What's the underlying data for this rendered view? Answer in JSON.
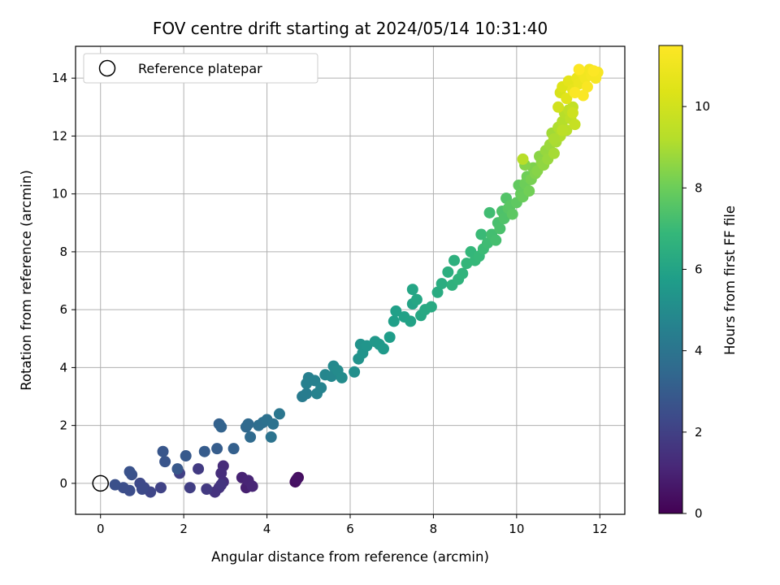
{
  "chart_data": {
    "type": "scatter",
    "title": "FOV centre drift starting at 2024/05/14 10:31:40",
    "xlabel": "Angular distance from reference (arcmin)",
    "ylabel": "Rotation from reference (arcmin)",
    "colorbar_label": "Hours from first FF file",
    "xlim": [
      -0.6,
      12.6
    ],
    "ylim": [
      -1.07,
      15.1
    ],
    "x_ticks": [
      0,
      2,
      4,
      6,
      8,
      10,
      12
    ],
    "y_ticks": [
      0,
      2,
      4,
      6,
      8,
      10,
      12,
      14
    ],
    "colorbar_range": [
      0,
      11.5
    ],
    "colorbar_ticks": [
      0,
      2,
      4,
      6,
      8,
      10
    ],
    "colormap": "viridis",
    "grid": true,
    "legend": {
      "label": "Reference platepar",
      "position": "top-left"
    },
    "reference_point": {
      "x": 0,
      "y": 0
    },
    "series": [
      {
        "points": [
          [
            4.7,
            0.1,
            0.2
          ],
          [
            4.75,
            0.2,
            0.3
          ],
          [
            4.68,
            0.05,
            0.4
          ],
          [
            4.72,
            0.15,
            0.5
          ],
          [
            3.6,
            -0.05,
            0.8
          ],
          [
            3.5,
            -0.15,
            0.9
          ],
          [
            3.4,
            0.2,
            1.0
          ],
          [
            3.55,
            0.1,
            1.05
          ],
          [
            3.65,
            -0.1,
            1.1
          ],
          [
            2.95,
            0.6,
            1.3
          ],
          [
            2.9,
            0.35,
            1.35
          ],
          [
            2.95,
            0.05,
            1.4
          ],
          [
            2.85,
            -0.15,
            1.5
          ],
          [
            2.75,
            -0.3,
            1.55
          ],
          [
            2.9,
            -0.05,
            1.6
          ],
          [
            2.55,
            -0.2,
            1.75
          ],
          [
            2.35,
            0.5,
            1.8
          ],
          [
            2.15,
            -0.15,
            1.9
          ],
          [
            1.9,
            0.35,
            2.0
          ],
          [
            1.45,
            -0.15,
            2.1
          ],
          [
            1.2,
            -0.3,
            2.2
          ],
          [
            1.05,
            -0.15,
            2.25
          ],
          [
            0.95,
            0.0,
            2.3
          ],
          [
            1.0,
            -0.2,
            2.35
          ],
          [
            0.7,
            -0.25,
            2.45
          ],
          [
            0.55,
            -0.15,
            2.5
          ],
          [
            0.35,
            -0.05,
            2.55
          ],
          [
            0.75,
            0.3,
            2.6
          ],
          [
            0.7,
            0.4,
            2.65
          ],
          [
            1.55,
            0.75,
            2.75
          ],
          [
            1.5,
            1.1,
            2.8
          ],
          [
            1.85,
            0.5,
            2.85
          ],
          [
            2.05,
            0.95,
            2.9
          ],
          [
            2.5,
            1.1,
            3.0
          ],
          [
            2.8,
            1.2,
            3.05
          ],
          [
            3.2,
            1.2,
            3.15
          ],
          [
            2.85,
            2.05,
            3.2
          ],
          [
            2.9,
            1.95,
            3.25
          ],
          [
            3.5,
            1.95,
            3.5
          ],
          [
            3.55,
            2.05,
            3.55
          ],
          [
            3.6,
            1.6,
            3.6
          ],
          [
            3.8,
            2.0,
            3.7
          ],
          [
            3.9,
            2.1,
            3.75
          ],
          [
            4.0,
            2.2,
            3.85
          ],
          [
            4.15,
            2.05,
            3.9
          ],
          [
            4.1,
            1.6,
            3.95
          ],
          [
            4.3,
            2.4,
            4.05
          ],
          [
            4.85,
            3.0,
            4.3
          ],
          [
            4.95,
            3.1,
            4.35
          ],
          [
            5.0,
            3.65,
            4.45
          ],
          [
            4.95,
            3.45,
            4.5
          ],
          [
            5.15,
            3.55,
            4.55
          ],
          [
            5.2,
            3.1,
            4.6
          ],
          [
            5.3,
            3.3,
            4.65
          ],
          [
            5.4,
            3.75,
            4.75
          ],
          [
            5.55,
            3.7,
            4.8
          ],
          [
            5.6,
            4.05,
            4.9
          ],
          [
            5.7,
            3.9,
            4.95
          ],
          [
            5.8,
            3.65,
            5.0
          ],
          [
            6.1,
            3.85,
            5.15
          ],
          [
            6.2,
            4.3,
            5.25
          ],
          [
            6.25,
            4.8,
            5.3
          ],
          [
            6.3,
            4.5,
            5.35
          ],
          [
            6.4,
            4.75,
            5.4
          ],
          [
            6.6,
            4.9,
            5.5
          ],
          [
            6.7,
            4.8,
            5.55
          ],
          [
            6.8,
            4.65,
            5.6
          ],
          [
            6.95,
            5.05,
            5.7
          ],
          [
            7.05,
            5.6,
            5.8
          ],
          [
            7.1,
            5.95,
            5.85
          ],
          [
            7.3,
            5.75,
            5.9
          ],
          [
            7.45,
            5.6,
            5.95
          ],
          [
            7.5,
            6.2,
            6.0
          ],
          [
            7.5,
            6.7,
            6.05
          ],
          [
            7.6,
            6.35,
            6.1
          ],
          [
            7.7,
            5.8,
            6.15
          ],
          [
            7.8,
            6.0,
            6.2
          ],
          [
            7.95,
            6.1,
            6.25
          ],
          [
            8.1,
            6.6,
            6.35
          ],
          [
            8.2,
            6.9,
            6.4
          ],
          [
            8.35,
            7.3,
            6.5
          ],
          [
            8.5,
            7.7,
            6.55
          ],
          [
            8.45,
            6.85,
            6.6
          ],
          [
            8.6,
            7.05,
            6.65
          ],
          [
            8.7,
            7.25,
            6.7
          ],
          [
            8.8,
            7.6,
            6.8
          ],
          [
            8.9,
            8.0,
            6.85
          ],
          [
            9.0,
            7.7,
            6.9
          ],
          [
            9.1,
            7.85,
            6.95
          ],
          [
            9.15,
            8.6,
            7.0
          ],
          [
            9.2,
            8.1,
            7.05
          ],
          [
            9.3,
            8.3,
            7.1
          ],
          [
            9.35,
            9.35,
            7.15
          ],
          [
            9.4,
            8.6,
            7.2
          ],
          [
            9.5,
            8.4,
            7.25
          ],
          [
            9.55,
            9.0,
            7.3
          ],
          [
            9.6,
            8.8,
            7.35
          ],
          [
            9.65,
            9.4,
            7.4
          ],
          [
            9.7,
            9.15,
            7.45
          ],
          [
            9.75,
            9.85,
            7.5
          ],
          [
            9.8,
            9.5,
            7.6
          ],
          [
            9.85,
            9.6,
            7.65
          ],
          [
            9.9,
            9.3,
            7.7
          ],
          [
            10.0,
            9.7,
            7.75
          ],
          [
            10.05,
            10.3,
            7.8
          ],
          [
            10.1,
            10.0,
            7.9
          ],
          [
            10.15,
            9.9,
            7.95
          ],
          [
            10.2,
            10.35,
            8.0
          ],
          [
            10.25,
            10.6,
            8.05
          ],
          [
            10.3,
            10.1,
            8.1
          ],
          [
            10.35,
            10.5,
            8.2
          ],
          [
            10.4,
            10.9,
            8.3
          ],
          [
            10.45,
            10.7,
            8.35
          ],
          [
            10.5,
            10.8,
            8.45
          ],
          [
            10.55,
            11.3,
            8.5
          ],
          [
            10.6,
            11.1,
            8.55
          ],
          [
            10.65,
            11.0,
            8.6
          ],
          [
            10.7,
            11.5,
            8.7
          ],
          [
            10.75,
            11.2,
            8.75
          ],
          [
            10.8,
            11.7,
            8.8
          ],
          [
            10.85,
            12.1,
            8.9
          ],
          [
            10.9,
            11.4,
            8.95
          ],
          [
            10.95,
            11.8,
            9.0
          ],
          [
            11.0,
            12.3,
            9.1
          ],
          [
            11.05,
            12.0,
            9.15
          ],
          [
            11.1,
            12.5,
            9.2
          ],
          [
            11.15,
            12.8,
            9.3
          ],
          [
            11.2,
            12.2,
            9.35
          ],
          [
            11.25,
            12.9,
            9.45
          ],
          [
            11.3,
            12.6,
            9.5
          ],
          [
            11.35,
            13.0,
            9.6
          ],
          [
            11.4,
            12.4,
            9.7
          ],
          [
            10.2,
            11.0,
            8.4
          ],
          [
            10.9,
            11.9,
            9.05
          ],
          [
            11.1,
            12.2,
            9.4
          ],
          [
            10.15,
            11.2,
            9.3
          ],
          [
            11.35,
            12.8,
            9.9
          ],
          [
            11.0,
            13.0,
            10.0
          ],
          [
            11.05,
            13.5,
            10.2
          ],
          [
            11.1,
            13.7,
            10.4
          ],
          [
            11.2,
            13.3,
            10.5
          ],
          [
            11.25,
            13.9,
            10.6
          ],
          [
            11.35,
            13.6,
            10.7
          ],
          [
            11.45,
            14.0,
            10.8
          ],
          [
            11.5,
            13.8,
            10.9
          ],
          [
            11.55,
            14.2,
            11.0
          ],
          [
            11.65,
            14.0,
            11.1
          ],
          [
            11.75,
            14.3,
            11.15
          ],
          [
            11.8,
            14.1,
            11.2
          ],
          [
            11.9,
            14.0,
            11.25
          ],
          [
            11.95,
            14.2,
            11.3
          ],
          [
            11.7,
            13.7,
            11.35
          ],
          [
            11.6,
            13.4,
            11.4
          ],
          [
            11.4,
            13.5,
            11.42
          ],
          [
            11.5,
            14.3,
            11.45
          ],
          [
            11.85,
            14.25,
            11.48
          ]
        ]
      }
    ]
  }
}
